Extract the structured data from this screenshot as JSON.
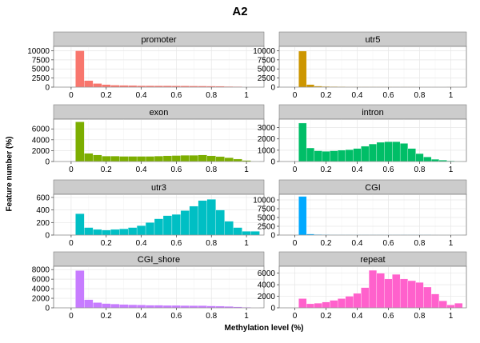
{
  "chart_data": {
    "type": "bar",
    "title": "A2",
    "xlabel": "Methylation level (%)",
    "ylabel": "Feature number (%)",
    "x_ticks": [
      0,
      0.2,
      0.4,
      0.6,
      0.8,
      1
    ],
    "bin_starts": [
      -0.025,
      0.025,
      0.075,
      0.125,
      0.175,
      0.225,
      0.275,
      0.325,
      0.375,
      0.425,
      0.475,
      0.525,
      0.575,
      0.625,
      0.675,
      0.725,
      0.775,
      0.825,
      0.875,
      0.925,
      0.975,
      1.025
    ],
    "bin_width": 0.05,
    "xlim": [
      -0.1,
      1.1
    ],
    "grid": true,
    "legend": "none",
    "panels": [
      {
        "label": "promoter",
        "color": "#F8766D",
        "ylim": [
          0,
          11200
        ],
        "y_ticks": [
          0,
          2500,
          5000,
          7500,
          10000
        ],
        "values": [
          0,
          10000,
          1800,
          1000,
          700,
          550,
          500,
          450,
          400,
          400,
          380,
          380,
          350,
          350,
          330,
          320,
          300,
          250,
          200,
          150,
          80,
          30
        ]
      },
      {
        "label": "utr5",
        "color": "#CD9600",
        "ylim": [
          0,
          11200
        ],
        "y_ticks": [
          0,
          2500,
          5000,
          7500,
          10000
        ],
        "values": [
          0,
          9900,
          700,
          300,
          200,
          150,
          120,
          100,
          100,
          100,
          100,
          100,
          100,
          90,
          90,
          90,
          80,
          70,
          60,
          50,
          30,
          10
        ]
      },
      {
        "label": "exon",
        "color": "#7CAE00",
        "ylim": [
          0,
          7800
        ],
        "y_ticks": [
          0,
          2000,
          4000,
          6000
        ],
        "values": [
          0,
          7300,
          1500,
          1200,
          1000,
          1000,
          950,
          950,
          950,
          950,
          1000,
          1050,
          1100,
          1150,
          1150,
          1200,
          1050,
          900,
          700,
          450,
          200,
          50
        ]
      },
      {
        "label": "intron",
        "color": "#00BE67",
        "ylim": [
          0,
          3750
        ],
        "y_ticks": [
          0,
          1000,
          2000,
          3000
        ],
        "values": [
          0,
          3400,
          1200,
          950,
          900,
          950,
          1000,
          1050,
          1150,
          1350,
          1550,
          1700,
          1750,
          1750,
          1600,
          1150,
          700,
          400,
          200,
          120,
          60,
          30
        ]
      },
      {
        "label": "utr3",
        "color": "#00BFC4",
        "ylim": [
          0,
          650
        ],
        "y_ticks": [
          0,
          200,
          400,
          600
        ],
        "values": [
          0,
          340,
          120,
          90,
          80,
          90,
          100,
          120,
          150,
          200,
          260,
          310,
          330,
          390,
          460,
          550,
          570,
          400,
          220,
          120,
          60,
          60
        ]
      },
      {
        "label": "CGI",
        "color": "#00A9FF",
        "ylim": [
          0,
          11600
        ],
        "y_ticks": [
          0,
          2500,
          5000,
          7500,
          10000
        ],
        "values": [
          0,
          11000,
          300,
          150,
          120,
          100,
          100,
          100,
          100,
          100,
          100,
          100,
          100,
          100,
          100,
          100,
          100,
          100,
          80,
          60,
          40,
          20
        ]
      },
      {
        "label": "CGI_shore",
        "color": "#C77CFF",
        "ylim": [
          0,
          8700
        ],
        "y_ticks": [
          0,
          2000,
          4000,
          6000,
          8000
        ],
        "values": [
          0,
          7800,
          1700,
          1100,
          900,
          800,
          700,
          650,
          600,
          550,
          550,
          500,
          500,
          480,
          450,
          450,
          400,
          350,
          300,
          200,
          120,
          40
        ]
      },
      {
        "label": "repeat",
        "color": "#FF61CC",
        "ylim": [
          0,
          7200
        ],
        "y_ticks": [
          0,
          2000,
          4000,
          6000
        ],
        "values": [
          0,
          1600,
          700,
          800,
          1000,
          1300,
          1600,
          2000,
          2500,
          3500,
          6500,
          6000,
          5000,
          5800,
          5000,
          4700,
          4400,
          3600,
          2400,
          1200,
          500,
          800
        ]
      }
    ]
  }
}
